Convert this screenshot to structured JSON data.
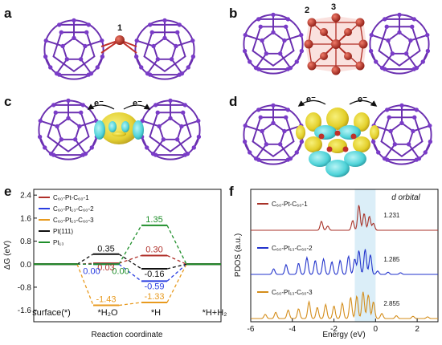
{
  "panel_labels": {
    "a": "a",
    "b": "b",
    "c": "c",
    "d": "d",
    "e": "e",
    "f": "f"
  },
  "structure_labels": {
    "site1": "1",
    "site2": "2",
    "site3": "3",
    "electron": "e⁻"
  },
  "colors": {
    "cage": "#6a2fb0",
    "pt_atom": "#c0302a",
    "yellow_density": "#e6d82a",
    "cyan_density": "#4fd3d8"
  },
  "chart_data": [
    {
      "type": "line",
      "panel": "e",
      "subtype": "free-energy step diagram",
      "xlabel": "Reaction coordinate",
      "ylabel": "ΔG (eV)",
      "ylim": [
        -2.0,
        2.6
      ],
      "yticks": [
        "2.4",
        "1.6",
        "0.8",
        "0.0",
        "-0.8",
        "-1.6"
      ],
      "ytick_values": [
        2.4,
        1.6,
        0.8,
        0.0,
        -0.8,
        -1.6
      ],
      "x_steps": [
        "surface(*)",
        "*H₂O",
        "*H",
        "*H+H₂"
      ],
      "legend_position": "top-left",
      "series": [
        {
          "name": "C₆₀-Pt-C₆₀-1",
          "color": "#b0302a",
          "values": [
            0,
            0.03,
            0.3,
            0
          ]
        },
        {
          "name": "C₆₀-Pt₁₃-C₆₀-2",
          "color": "#2a3ee0",
          "values": [
            0,
            0.0,
            -0.59,
            0
          ]
        },
        {
          "name": "C₆₀-Pt₁₃-C₆₀-3",
          "color": "#e89a1e",
          "values": [
            0,
            -1.43,
            -1.33,
            0
          ]
        },
        {
          "name": "Pt(111)",
          "color": "#111111",
          "values": [
            0,
            0.35,
            -0.16,
            0
          ]
        },
        {
          "name": "Pt₁₃",
          "color": "#1e8e2a",
          "values": [
            0,
            0.0,
            1.35,
            0
          ]
        }
      ],
      "value_labels": [
        {
          "series": 3,
          "step": 1,
          "text": "0.35",
          "color": "#111111"
        },
        {
          "series": 0,
          "step": 1,
          "text": "0.03",
          "color": "#b0302a"
        },
        {
          "series": 1,
          "step": 1,
          "text": "0.00",
          "color": "#2a3ee0"
        },
        {
          "series": 4,
          "step": 1,
          "text": "0.00",
          "color": "#1e8e2a"
        },
        {
          "series": 2,
          "step": 1,
          "text": "-1.43",
          "color": "#e89a1e"
        },
        {
          "series": 4,
          "step": 2,
          "text": "1.35",
          "color": "#1e8e2a"
        },
        {
          "series": 0,
          "step": 2,
          "text": "0.30",
          "color": "#b0302a"
        },
        {
          "series": 3,
          "step": 2,
          "text": "-0.16",
          "color": "#111111"
        },
        {
          "series": 1,
          "step": 2,
          "text": "-0.59",
          "color": "#2a3ee0"
        },
        {
          "series": 2,
          "step": 2,
          "text": "-1.33",
          "color": "#e89a1e"
        }
      ]
    },
    {
      "type": "line",
      "panel": "f",
      "subtype": "projected density of states",
      "xlabel": "Energy (eV)",
      "ylabel": "PDOS (a.u.)",
      "xlim": [
        -6,
        3
      ],
      "xticks": [
        -6,
        -4,
        -2,
        0,
        2
      ],
      "xtick_labels": [
        "-6",
        "-4",
        "-2",
        "0",
        "2"
      ],
      "annotation": "d orbital",
      "highlight_range": [
        -1.0,
        0.0
      ],
      "series": [
        {
          "name": "C₆₀-Pt-C₆₀-1",
          "color": "#a83228",
          "d_band_value": "1.231",
          "peaks": [
            [
              -2.6,
              0.32
            ],
            [
              -2.3,
              0.15
            ],
            [
              -1.1,
              0.35
            ],
            [
              -0.8,
              0.9
            ],
            [
              -0.55,
              0.6
            ],
            [
              -0.3,
              0.5
            ],
            [
              -0.1,
              0.25
            ]
          ]
        },
        {
          "name": "C₆₀-Pt₁₃-C₆₀-2",
          "color": "#2233cc",
          "d_band_value": "1.285",
          "peaks": [
            [
              -4.9,
              0.2
            ],
            [
              -4.3,
              0.35
            ],
            [
              -3.7,
              0.4
            ],
            [
              -3.3,
              0.6
            ],
            [
              -2.9,
              0.5
            ],
            [
              -2.5,
              0.55
            ],
            [
              -2.1,
              0.45
            ],
            [
              -1.7,
              0.5
            ],
            [
              -1.3,
              0.65
            ],
            [
              -1.0,
              0.55
            ],
            [
              -0.8,
              0.85
            ],
            [
              -0.5,
              0.9
            ],
            [
              -0.25,
              0.7
            ],
            [
              0.1,
              0.12
            ],
            [
              0.6,
              0.08
            ],
            [
              1.2,
              0.06
            ]
          ]
        },
        {
          "name": "C₆₀-Pt₁₃-C₆₀-3",
          "color": "#d48d1a",
          "d_band_value": "2.855",
          "peaks": [
            [
              -5.3,
              0.15
            ],
            [
              -4.8,
              0.22
            ],
            [
              -4.2,
              0.3
            ],
            [
              -3.7,
              0.35
            ],
            [
              -3.2,
              0.6
            ],
            [
              -2.8,
              0.4
            ],
            [
              -2.4,
              0.5
            ],
            [
              -2.0,
              0.45
            ],
            [
              -1.6,
              0.55
            ],
            [
              -1.2,
              0.75
            ],
            [
              -0.9,
              0.8
            ],
            [
              -0.6,
              0.95
            ],
            [
              -0.35,
              0.85
            ],
            [
              -0.1,
              0.6
            ],
            [
              0.3,
              0.18
            ],
            [
              1.0,
              0.1
            ],
            [
              1.8,
              0.08
            ],
            [
              2.5,
              0.06
            ]
          ]
        }
      ]
    }
  ]
}
